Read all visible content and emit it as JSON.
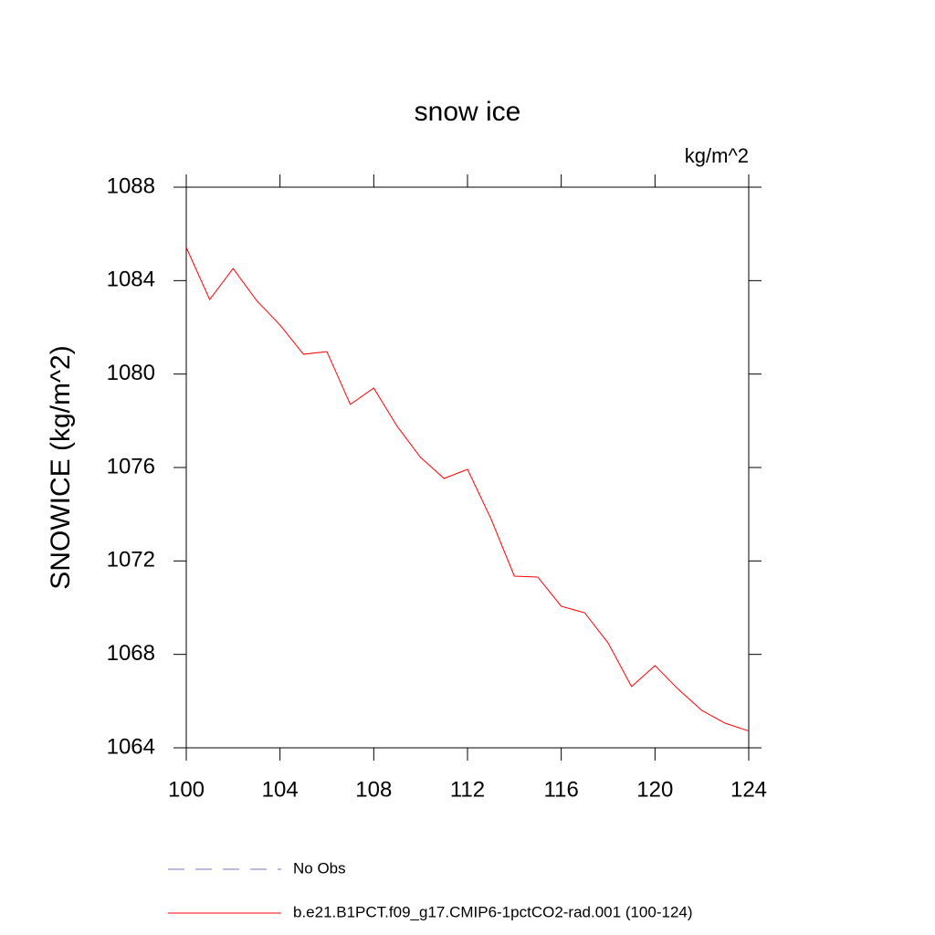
{
  "chart_data": {
    "type": "line",
    "title": "snow ice",
    "units_label": "kg/m^2",
    "y_label": "SNOWICE  (kg/m^2)",
    "x": [
      100,
      101,
      102,
      103,
      104,
      105,
      106,
      107,
      108,
      109,
      110,
      111,
      112,
      113,
      114,
      115,
      116,
      117,
      118,
      119,
      120,
      121,
      122,
      123,
      124
    ],
    "series": [
      {
        "name": "No Obs",
        "color": "#7b6fd0",
        "dashed": true,
        "values": [
          null,
          null,
          null,
          null,
          null,
          null,
          null,
          null,
          null,
          null,
          null,
          null,
          null,
          null,
          null,
          null,
          null,
          null,
          null,
          null,
          null,
          null,
          null,
          null,
          null
        ]
      },
      {
        "name": "b.e21.B1PCT.f09_g17.CMIP6-1pctCO2-rad.001 (100-124)",
        "color": "#ff0000",
        "dashed": false,
        "values": [
          1085.42,
          1083.19,
          1084.52,
          1083.15,
          1082.1,
          1080.85,
          1080.96,
          1078.7,
          1079.4,
          1077.76,
          1076.43,
          1075.53,
          1075.92,
          1073.81,
          1071.35,
          1071.31,
          1070.06,
          1069.78,
          1068.49,
          1066.62,
          1067.52,
          1066.5,
          1065.6,
          1065.05,
          1064.72
        ]
      }
    ],
    "xlim": [
      100,
      124
    ],
    "xticks": [
      100,
      104,
      108,
      112,
      116,
      120,
      124
    ],
    "ylim": [
      1064,
      1088
    ],
    "yticks": [
      1064,
      1068,
      1072,
      1076,
      1080,
      1084,
      1088
    ],
    "grid": false
  }
}
